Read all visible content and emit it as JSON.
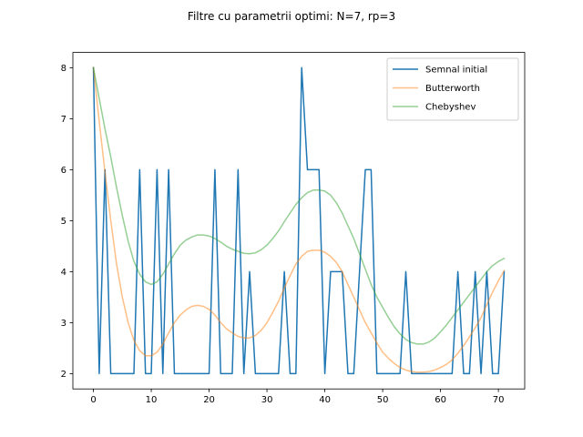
{
  "chart_data": {
    "type": "line",
    "title": "Filtre cu parametrii optimi: N=7, rp=3",
    "xlabel": "",
    "ylabel": "",
    "xlim": [
      -3.55,
      74.55
    ],
    "ylim": [
      1.7,
      8.3
    ],
    "xticks": [
      0,
      10,
      20,
      30,
      40,
      50,
      60,
      70
    ],
    "yticks": [
      2,
      3,
      4,
      5,
      6,
      7,
      8
    ],
    "grid": false,
    "legend_position": "upper right",
    "series": [
      {
        "name": "Semnal initial",
        "color": "#1f77b4",
        "opacity": 1.0,
        "x": [
          0,
          1,
          2,
          3,
          4,
          5,
          6,
          7,
          8,
          9,
          10,
          11,
          12,
          13,
          14,
          15,
          16,
          17,
          18,
          19,
          20,
          21,
          22,
          23,
          24,
          25,
          26,
          27,
          28,
          29,
          30,
          31,
          32,
          33,
          34,
          35,
          36,
          37,
          38,
          39,
          40,
          41,
          42,
          43,
          44,
          45,
          46,
          47,
          48,
          49,
          50,
          51,
          52,
          53,
          54,
          55,
          56,
          57,
          58,
          59,
          60,
          61,
          62,
          63,
          64,
          65,
          66,
          67,
          68,
          69,
          70,
          71
        ],
        "values": [
          8,
          2,
          6,
          2,
          2,
          2,
          2,
          2,
          6,
          2,
          2,
          6,
          2,
          6,
          2,
          2,
          2,
          2,
          2,
          2,
          2,
          6,
          2,
          2,
          2,
          6,
          2,
          4,
          2,
          2,
          2,
          2,
          2,
          4,
          2,
          2,
          8,
          6,
          6,
          6,
          2,
          4,
          4,
          4,
          2,
          2,
          4,
          6,
          6,
          2,
          2,
          2,
          2,
          2,
          4,
          2,
          2,
          2,
          2,
          2,
          2,
          2,
          2,
          4,
          2,
          2,
          4,
          2,
          4,
          2,
          2,
          4
        ]
      },
      {
        "name": "Butterworth",
        "color": "#ff7f0e",
        "opacity": 0.5,
        "x": [
          0,
          1,
          2,
          3,
          4,
          5,
          6,
          7,
          8,
          9,
          10,
          11,
          12,
          13,
          14,
          15,
          16,
          17,
          18,
          19,
          20,
          21,
          22,
          23,
          24,
          25,
          26,
          27,
          28,
          29,
          30,
          31,
          32,
          33,
          34,
          35,
          36,
          37,
          38,
          39,
          40,
          41,
          42,
          43,
          44,
          45,
          46,
          47,
          48,
          49,
          50,
          51,
          52,
          53,
          54,
          55,
          56,
          57,
          58,
          59,
          60,
          61,
          62,
          63,
          64,
          65,
          66,
          67,
          68,
          69,
          70,
          71
        ],
        "values": [
          8.0,
          6.95,
          5.95,
          5.0,
          4.15,
          3.5,
          3.0,
          2.65,
          2.45,
          2.35,
          2.35,
          2.42,
          2.58,
          2.8,
          3.0,
          3.15,
          3.25,
          3.32,
          3.34,
          3.32,
          3.26,
          3.15,
          3.0,
          2.88,
          2.8,
          2.73,
          2.7,
          2.7,
          2.75,
          2.85,
          3.0,
          3.2,
          3.42,
          3.68,
          3.92,
          4.15,
          4.3,
          4.4,
          4.42,
          4.42,
          4.38,
          4.3,
          4.18,
          4.0,
          3.75,
          3.5,
          3.25,
          3.0,
          2.8,
          2.6,
          2.42,
          2.3,
          2.2,
          2.12,
          2.07,
          2.04,
          2.03,
          2.03,
          2.04,
          2.07,
          2.12,
          2.18,
          2.27,
          2.4,
          2.55,
          2.72,
          2.9,
          3.1,
          3.35,
          3.6,
          3.82,
          4.02
        ]
      },
      {
        "name": "Chebyshev",
        "color": "#2ca02c",
        "opacity": 0.5,
        "x": [
          0,
          1,
          2,
          3,
          4,
          5,
          6,
          7,
          8,
          9,
          10,
          11,
          12,
          13,
          14,
          15,
          16,
          17,
          18,
          19,
          20,
          21,
          22,
          23,
          24,
          25,
          26,
          27,
          28,
          29,
          30,
          31,
          32,
          33,
          34,
          35,
          36,
          37,
          38,
          39,
          40,
          41,
          42,
          43,
          44,
          45,
          46,
          47,
          48,
          49,
          50,
          51,
          52,
          53,
          54,
          55,
          56,
          57,
          58,
          59,
          60,
          61,
          62,
          63,
          64,
          65,
          66,
          67,
          68,
          69,
          70,
          71
        ],
        "values": [
          8.0,
          7.4,
          6.8,
          6.25,
          5.65,
          5.1,
          4.6,
          4.2,
          3.95,
          3.8,
          3.75,
          3.8,
          3.95,
          4.15,
          4.35,
          4.52,
          4.62,
          4.68,
          4.72,
          4.72,
          4.7,
          4.65,
          4.58,
          4.5,
          4.44,
          4.4,
          4.36,
          4.35,
          4.37,
          4.43,
          4.52,
          4.65,
          4.8,
          4.98,
          5.15,
          5.32,
          5.45,
          5.55,
          5.6,
          5.6,
          5.58,
          5.5,
          5.35,
          5.15,
          4.9,
          4.65,
          4.35,
          4.05,
          3.75,
          3.5,
          3.3,
          3.1,
          2.92,
          2.78,
          2.67,
          2.61,
          2.58,
          2.58,
          2.62,
          2.7,
          2.82,
          2.95,
          3.1,
          3.25,
          3.4,
          3.55,
          3.7,
          3.85,
          4.0,
          4.12,
          4.2,
          4.26
        ]
      }
    ]
  }
}
